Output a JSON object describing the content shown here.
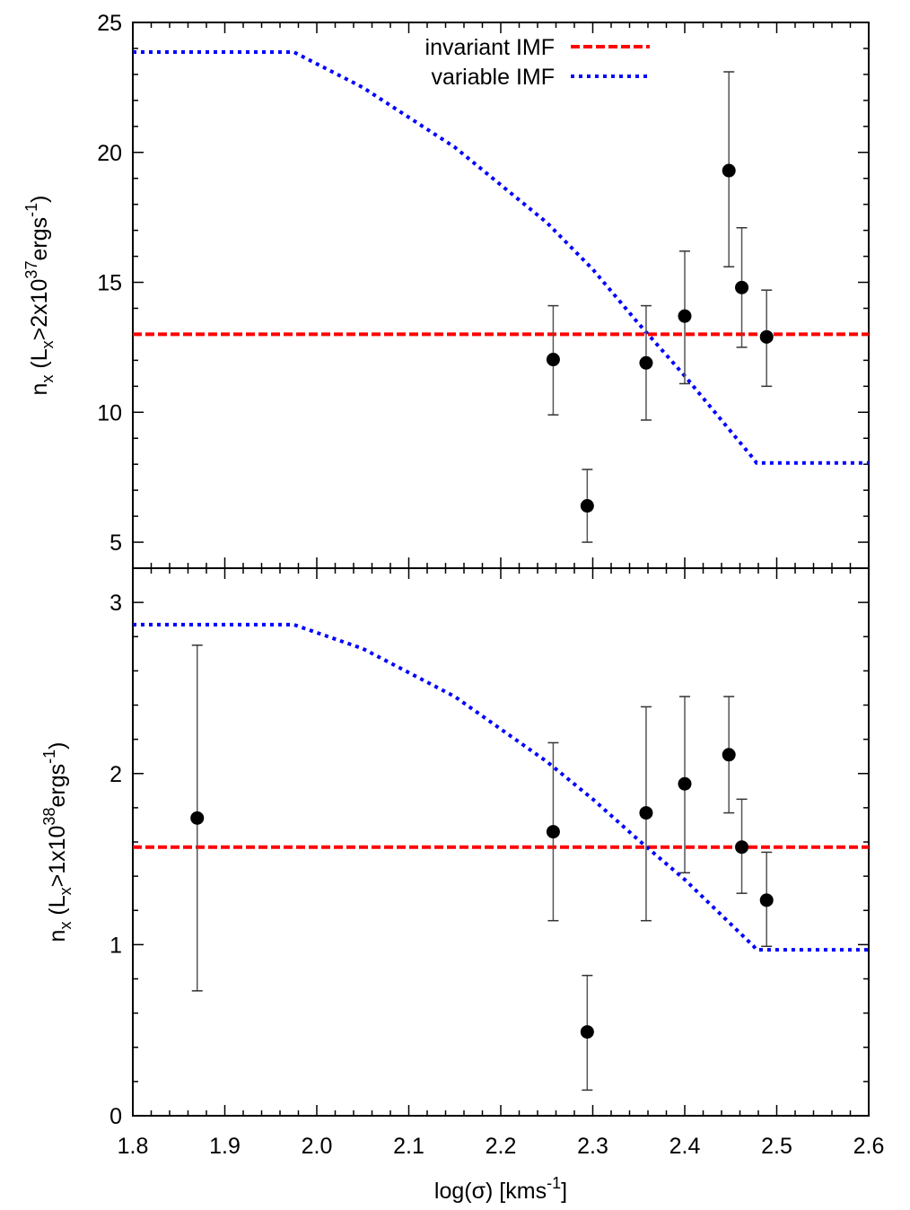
{
  "chart_data": {
    "type": "scatter",
    "shared_x": {
      "label": "log(σ) [kms",
      "label_sup": "-1",
      "label_end": "]",
      "range": [
        1.8,
        2.6
      ],
      "ticks": [
        "1.8",
        "1.9",
        "2.0",
        "2.1",
        "2.2",
        "2.3",
        "2.4",
        "2.5",
        "2.6"
      ]
    },
    "legend": {
      "placement": "top-center",
      "entries": [
        {
          "label": "invariant IMF",
          "color": "#ff0000",
          "style": "dashed"
        },
        {
          "label": "variable IMF",
          "color": "#0000ff",
          "style": "dotted"
        }
      ]
    },
    "panels": [
      {
        "name": "top",
        "ylabel": {
          "pre": "n",
          "sub1": "x",
          "mid": " (L",
          "sub2": "x",
          "mid2": ">2x10",
          "sup1": "37",
          "mid3": "ergs",
          "sup2": "-1",
          "post": ")"
        },
        "ylim": [
          4.0,
          25
        ],
        "yticks": [
          5,
          10,
          15,
          20,
          25
        ],
        "ytick_labels": [
          "5",
          "10",
          "15",
          "20",
          "25"
        ],
        "points": [
          {
            "x": 2.257,
            "y": 12.03,
            "ylo": 9.9,
            "yhi": 14.1
          },
          {
            "x": 2.294,
            "y": 6.4,
            "ylo": 5.0,
            "yhi": 7.8
          },
          {
            "x": 2.358,
            "y": 11.9,
            "ylo": 9.7,
            "yhi": 14.1
          },
          {
            "x": 2.4,
            "y": 13.7,
            "ylo": 11.1,
            "yhi": 16.2
          },
          {
            "x": 2.448,
            "y": 19.3,
            "ylo": 15.6,
            "yhi": 23.1
          },
          {
            "x": 2.462,
            "y": 14.8,
            "ylo": 12.5,
            "yhi": 17.1
          },
          {
            "x": 2.489,
            "y": 12.9,
            "ylo": 11.0,
            "yhi": 14.7
          }
        ],
        "invariant_imf": {
          "y": 13.0
        },
        "variable_imf": {
          "x": [
            1.8,
            1.975,
            2.05,
            2.15,
            2.25,
            2.3,
            2.35,
            2.4,
            2.475,
            2.478,
            2.6
          ],
          "y": [
            23.86,
            23.86,
            22.5,
            20.2,
            17.3,
            15.5,
            13.4,
            11.4,
            8.2,
            8.05,
            8.05
          ]
        }
      },
      {
        "name": "bottom",
        "ylabel": {
          "pre": "n",
          "sub1": "x",
          "mid": " (L",
          "sub2": "x",
          "mid2": ">1x10",
          "sup1": "38",
          "mid3": "ergs",
          "sup2": "-1",
          "post": ")"
        },
        "ylim": [
          0,
          3.2
        ],
        "yticks": [
          0,
          1,
          2,
          3
        ],
        "ytick_labels": [
          "0",
          "1",
          "2",
          "3"
        ],
        "points": [
          {
            "x": 1.87,
            "y": 1.74,
            "ylo": 0.73,
            "yhi": 2.75
          },
          {
            "x": 2.257,
            "y": 1.66,
            "ylo": 1.14,
            "yhi": 2.18
          },
          {
            "x": 2.294,
            "y": 0.49,
            "ylo": 0.15,
            "yhi": 0.82
          },
          {
            "x": 2.358,
            "y": 1.77,
            "ylo": 1.14,
            "yhi": 2.39
          },
          {
            "x": 2.4,
            "y": 1.94,
            "ylo": 1.42,
            "yhi": 2.45
          },
          {
            "x": 2.448,
            "y": 2.11,
            "ylo": 1.77,
            "yhi": 2.45
          },
          {
            "x": 2.462,
            "y": 1.57,
            "ylo": 1.3,
            "yhi": 1.85
          },
          {
            "x": 2.489,
            "y": 1.26,
            "ylo": 0.99,
            "yhi": 1.54
          }
        ],
        "invariant_imf": {
          "y": 1.57
        },
        "variable_imf": {
          "x": [
            1.8,
            1.975,
            2.05,
            2.15,
            2.25,
            2.3,
            2.35,
            2.4,
            2.475,
            2.478,
            2.6
          ],
          "y": [
            2.87,
            2.87,
            2.73,
            2.45,
            2.07,
            1.85,
            1.61,
            1.38,
            0.99,
            0.97,
            0.97
          ]
        }
      }
    ]
  }
}
